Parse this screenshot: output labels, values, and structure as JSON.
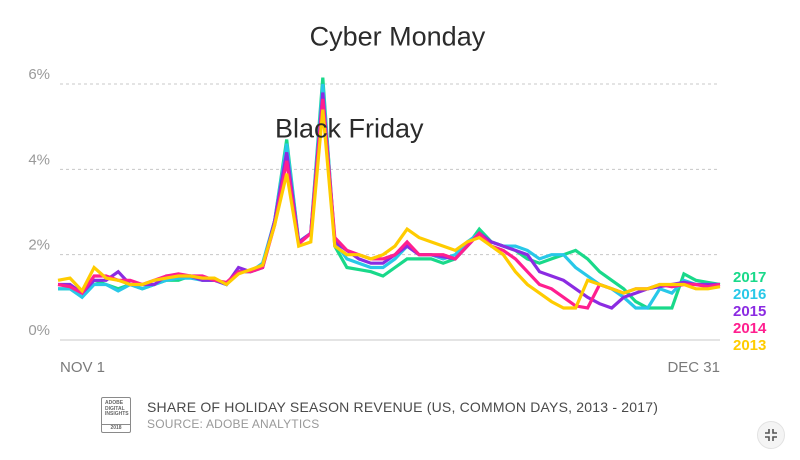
{
  "chart_data": {
    "type": "line",
    "title": "SHARE OF HOLIDAY SEASON REVENUE (US, COMMON DAYS, 2013 - 2017)",
    "source": "SOURCE: ADOBE ANALYTICS",
    "xlabel": "",
    "ylabel": "",
    "ylim": [
      0,
      6
    ],
    "yticks": [
      "0%",
      "2%",
      "4%",
      "6%"
    ],
    "x_start_label": "NOV 1",
    "x_end_label": "DEC 31",
    "annotations": [
      {
        "text": "Black Friday",
        "x": 24.2,
        "y": 4.75
      },
      {
        "text": "Cyber Monday",
        "x": 28.2,
        "y": 6.9
      }
    ],
    "series": [
      {
        "name": "2017",
        "color": "#19d98a",
        "values": [
          1.2,
          1.2,
          1.1,
          1.4,
          1.3,
          1.2,
          1.3,
          1.2,
          1.3,
          1.4,
          1.4,
          1.5,
          1.4,
          1.4,
          1.3,
          1.6,
          1.6,
          1.7,
          2.8,
          4.7,
          2.3,
          2.5,
          6.15,
          2.2,
          1.7,
          1.65,
          1.6,
          1.5,
          1.7,
          1.9,
          1.9,
          1.9,
          1.8,
          1.9,
          2.2,
          2.6,
          2.3,
          2.2,
          2.1,
          1.9,
          1.8,
          1.9,
          2.0,
          2.1,
          1.9,
          1.6,
          1.4,
          1.2,
          0.9,
          0.75,
          0.75,
          0.75,
          1.55,
          1.4,
          1.35,
          1.3
        ]
      },
      {
        "name": "2016",
        "color": "#28c8e8",
        "values": [
          1.2,
          1.2,
          1.0,
          1.3,
          1.3,
          1.15,
          1.3,
          1.2,
          1.3,
          1.4,
          1.45,
          1.45,
          1.4,
          1.4,
          1.3,
          1.6,
          1.6,
          1.8,
          2.8,
          4.6,
          2.3,
          2.5,
          6.0,
          2.3,
          1.9,
          1.8,
          1.7,
          1.7,
          1.9,
          2.2,
          2.0,
          2.0,
          1.9,
          2.0,
          2.3,
          2.5,
          2.3,
          2.2,
          2.2,
          2.1,
          1.9,
          2.0,
          2.0,
          1.7,
          1.5,
          1.3,
          1.2,
          1.0,
          0.75,
          0.75,
          1.2,
          1.1,
          1.4,
          1.3,
          1.3,
          1.3
        ]
      },
      {
        "name": "2015",
        "color": "#8b2be2",
        "values": [
          1.3,
          1.3,
          1.1,
          1.4,
          1.4,
          1.6,
          1.3,
          1.3,
          1.3,
          1.5,
          1.5,
          1.5,
          1.4,
          1.4,
          1.3,
          1.7,
          1.6,
          1.7,
          2.8,
          4.4,
          2.3,
          2.5,
          5.8,
          2.3,
          2.1,
          1.9,
          1.8,
          1.8,
          2.0,
          2.2,
          2.0,
          2.0,
          1.95,
          1.9,
          2.2,
          2.5,
          2.3,
          2.2,
          2.1,
          2.0,
          1.6,
          1.5,
          1.4,
          1.2,
          1.0,
          0.85,
          0.75,
          1.0,
          1.1,
          1.2,
          1.25,
          1.3,
          1.35,
          1.3,
          1.3,
          1.3
        ]
      },
      {
        "name": "2014",
        "color": "#ff1f8f",
        "values": [
          1.3,
          1.25,
          1.1,
          1.5,
          1.5,
          1.4,
          1.4,
          1.3,
          1.4,
          1.5,
          1.55,
          1.5,
          1.5,
          1.4,
          1.35,
          1.6,
          1.6,
          1.7,
          2.7,
          4.2,
          2.25,
          2.5,
          5.65,
          2.4,
          2.1,
          2.0,
          1.9,
          1.9,
          2.0,
          2.3,
          2.0,
          2.0,
          2.0,
          1.9,
          2.2,
          2.5,
          2.2,
          2.1,
          1.9,
          1.6,
          1.3,
          1.2,
          1.0,
          0.8,
          0.75,
          1.3,
          1.2,
          1.1,
          1.2,
          1.2,
          1.3,
          1.25,
          1.3,
          1.3,
          1.25,
          1.3
        ]
      },
      {
        "name": "2013",
        "color": "#ffcc00",
        "values": [
          1.4,
          1.45,
          1.15,
          1.7,
          1.45,
          1.4,
          1.3,
          1.3,
          1.4,
          1.45,
          1.5,
          1.5,
          1.45,
          1.45,
          1.3,
          1.55,
          1.65,
          1.75,
          2.7,
          3.9,
          2.2,
          2.3,
          5.4,
          2.2,
          2.0,
          2.0,
          1.9,
          2.0,
          2.2,
          2.6,
          2.4,
          2.3,
          2.2,
          2.1,
          2.3,
          2.4,
          2.2,
          2.0,
          1.6,
          1.3,
          1.1,
          0.9,
          0.75,
          0.75,
          1.4,
          1.3,
          1.2,
          1.1,
          1.2,
          1.2,
          1.3,
          1.3,
          1.3,
          1.2,
          1.2,
          1.25
        ]
      }
    ]
  },
  "footer": {
    "badge_text": "ADOBE DIGITAL INSIGHTS",
    "badge_year": "2018"
  },
  "controls": {
    "expand_icon": "expand-icon"
  }
}
